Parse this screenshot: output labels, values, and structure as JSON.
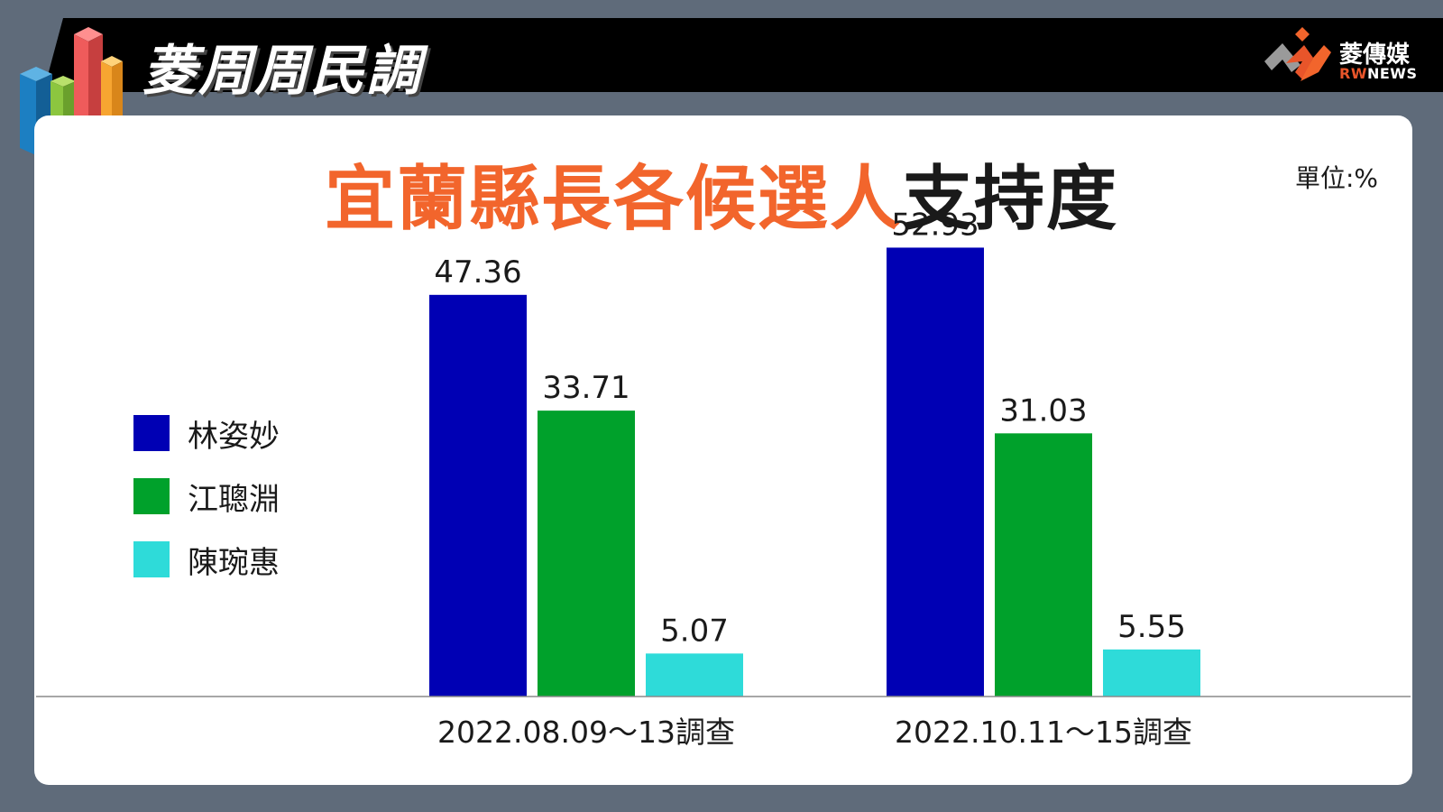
{
  "header": {
    "brand_title": "菱周周民調",
    "logo_name": "菱傳媒",
    "logo_sub_red": "RW",
    "logo_sub_rest": "NEWS",
    "logo_icon": "rw-news-logo-icon",
    "bars_icon": "3d-bar-chart-icon"
  },
  "colors": {
    "background": "#5f6b7a",
    "title_accent": "#f2652c",
    "title_dark": "#1a1a1a"
  },
  "chart_data": {
    "type": "bar",
    "title_accent": "宜蘭縣長各候選人",
    "title_rest": "支持度",
    "unit": "單位:%",
    "categories": [
      "2022.08.09～13調查",
      "2022.10.11～15調查"
    ],
    "series": [
      {
        "name": "林姿妙",
        "color": "#0000b4",
        "values": [
          47.36,
          52.93
        ]
      },
      {
        "name": "江聰淵",
        "color": "#00a12b",
        "values": [
          33.71,
          31.03
        ]
      },
      {
        "name": "陳琬惠",
        "color": "#2edbd9",
        "values": [
          5.07,
          5.55
        ]
      }
    ],
    "value_labels": [
      [
        "47.36",
        "52.93"
      ],
      [
        "33.71",
        "31.03"
      ],
      [
        "5.07",
        "5.55"
      ]
    ],
    "ylim": [
      0,
      60
    ],
    "grid": false,
    "legend_position": "left"
  }
}
